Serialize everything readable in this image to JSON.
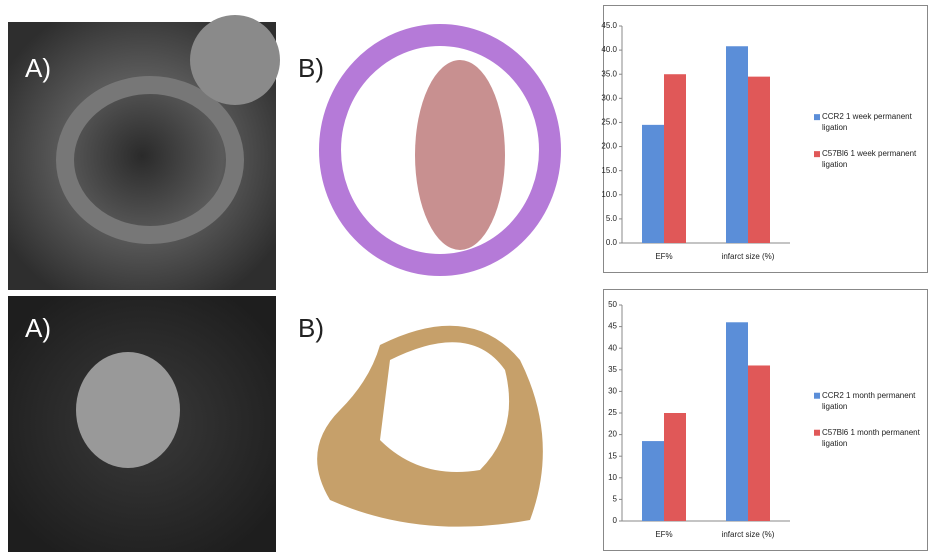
{
  "panels": [
    {
      "label": "A)"
    },
    {
      "label": "B)"
    },
    {
      "label": "A)"
    },
    {
      "label": "B)"
    }
  ],
  "chart_data": [
    {
      "type": "bar",
      "categories": [
        "EF%",
        "infarct size (%)"
      ],
      "series": [
        {
          "name": "CCR2 1 week permanent ligation",
          "color": "#5b8ed8",
          "values": [
            24.5,
            40.8
          ]
        },
        {
          "name": "C57Bl6 1 week permanent ligation",
          "color": "#e05858",
          "values": [
            35.0,
            34.5
          ]
        }
      ],
      "ylim": [
        0,
        45
      ],
      "yticks": [
        {
          "value": 0,
          "label": "0.0"
        },
        {
          "value": 5,
          "label": "5.0"
        },
        {
          "value": 10,
          "label": "10.0"
        },
        {
          "value": 15,
          "label": "15.0"
        },
        {
          "value": 20,
          "label": "20.0"
        },
        {
          "value": 25,
          "label": "25.0"
        },
        {
          "value": 30,
          "label": "30.0"
        },
        {
          "value": 35,
          "label": "35.0"
        },
        {
          "value": 40,
          "label": "40.0"
        },
        {
          "value": 45,
          "label": "45.0"
        }
      ],
      "legend": "right"
    },
    {
      "type": "bar",
      "categories": [
        "EF%",
        "infarct size (%)"
      ],
      "series": [
        {
          "name": "CCR2 1 month permanent ligation",
          "color": "#5b8ed8",
          "values": [
            18.5,
            46
          ]
        },
        {
          "name": "C57Bl6 1 month permanent ligation",
          "color": "#e05858",
          "values": [
            25,
            36
          ]
        }
      ],
      "ylim": [
        0,
        50
      ],
      "yticks": [
        0,
        5,
        10,
        15,
        20,
        25,
        30,
        35,
        40,
        45,
        50
      ],
      "legend": "right"
    }
  ]
}
